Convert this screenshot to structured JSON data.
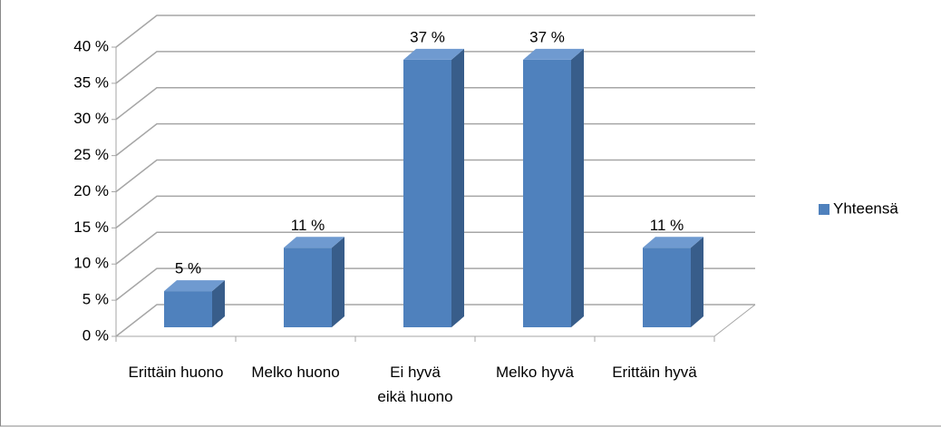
{
  "chart_data": {
    "type": "bar3d",
    "categories": [
      "Erittäin huono",
      "Melko huono",
      "Ei hyvä eikä huono",
      "Melko hyvä",
      "Erittäin hyvä"
    ],
    "series": [
      {
        "name": "Yhteensä",
        "color": "#4f81bd",
        "values": [
          5,
          11,
          37,
          37,
          11
        ],
        "value_labels": [
          "5 %",
          "11 %",
          "37 %",
          "37 %",
          "11 %"
        ]
      }
    ],
    "ylim": [
      0,
      40
    ],
    "yticks": [
      {
        "value": 0,
        "label": "0 %"
      },
      {
        "value": 5,
        "label": "5 %"
      },
      {
        "value": 10,
        "label": "10 %"
      },
      {
        "value": 15,
        "label": "15 %"
      },
      {
        "value": 20,
        "label": "20 %"
      },
      {
        "value": 25,
        "label": "25 %"
      },
      {
        "value": 30,
        "label": "30 %"
      },
      {
        "value": 35,
        "label": "35 %"
      },
      {
        "value": 40,
        "label": "40 %"
      }
    ],
    "grid": true,
    "legend": "right"
  }
}
